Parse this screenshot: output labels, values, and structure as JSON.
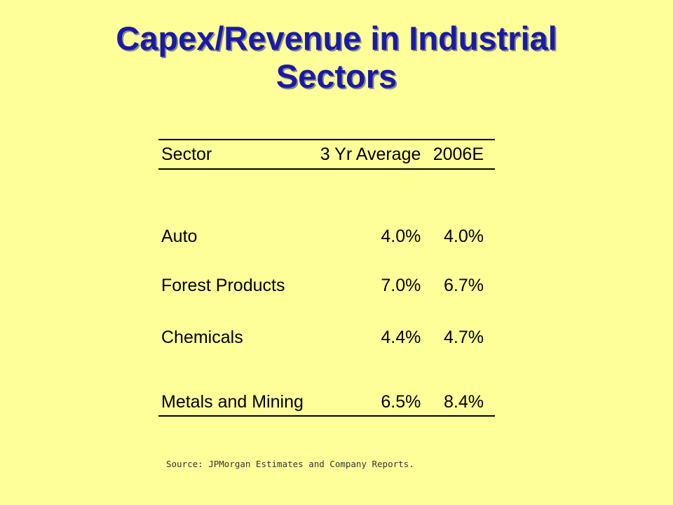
{
  "slide": {
    "title_line1": "Capex/Revenue in Industrial",
    "title_line2": "Sectors",
    "source": "Source: JPMorgan Estimates and Company Reports."
  },
  "table": {
    "headers": [
      "Sector",
      "3 Yr Average",
      "2006E"
    ],
    "rows": [
      [
        "Auto",
        "4.0%",
        "4.0%"
      ],
      [
        "Forest Products",
        "7.0%",
        "6.7%"
      ],
      [
        "Chemicals",
        "4.4%",
        "4.7%"
      ],
      [
        "Metals and Mining",
        "6.5%",
        "8.4%"
      ]
    ]
  },
  "colors": {
    "background": "#ffff99",
    "title": "#1a1aa6",
    "text": "#000000"
  }
}
